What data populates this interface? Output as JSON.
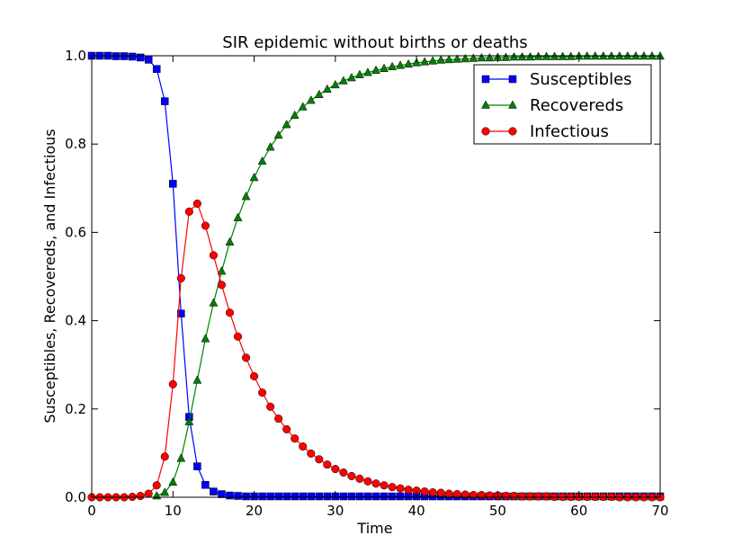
{
  "chart_data": {
    "type": "line",
    "title": "SIR epidemic without births or deaths",
    "xlabel": "Time",
    "ylabel": "Susceptibles, Recovereds, and Infectious",
    "xlim": [
      0,
      70
    ],
    "ylim": [
      0,
      1.0
    ],
    "xticks": [
      "0",
      "10",
      "20",
      "30",
      "40",
      "50",
      "60",
      "70"
    ],
    "yticks": [
      "0.0",
      "0.2",
      "0.4",
      "0.6",
      "0.8",
      "1.0"
    ],
    "grid": false,
    "legend_position": "upper-right",
    "series": [
      {
        "name": "Susceptibles",
        "color": "#0000ff",
        "marker": "square",
        "x": [
          0,
          1,
          2,
          3,
          4,
          5,
          6,
          7,
          8,
          9,
          10,
          11,
          12,
          13,
          14,
          15,
          16,
          17,
          18,
          19,
          20,
          21,
          22,
          23,
          24,
          25,
          26,
          27,
          28,
          29,
          30,
          31,
          32,
          33,
          34,
          35,
          36,
          37,
          38,
          39,
          40,
          41,
          42,
          43,
          44,
          45,
          46,
          47,
          48,
          49,
          50,
          51,
          52,
          53,
          54,
          55,
          56,
          57,
          58,
          59,
          60,
          61,
          62,
          63,
          64,
          65,
          66,
          67,
          68,
          69,
          70
        ],
        "values": [
          1.0,
          1.0,
          1.0,
          0.999,
          0.999,
          0.998,
          0.996,
          0.991,
          0.97,
          0.897,
          0.71,
          0.416,
          0.182,
          0.07,
          0.028,
          0.013,
          0.007,
          0.004,
          0.003,
          0.002,
          0.002,
          0.002,
          0.002,
          0.002,
          0.002,
          0.002,
          0.002,
          0.002,
          0.002,
          0.002,
          0.002,
          0.002,
          0.002,
          0.002,
          0.002,
          0.002,
          0.002,
          0.002,
          0.002,
          0.002,
          0.002,
          0.002,
          0.002,
          0.002,
          0.002,
          0.002,
          0.002,
          0.002,
          0.002,
          0.002,
          0.002,
          0.002,
          0.002,
          0.002,
          0.002,
          0.002,
          0.002,
          0.002,
          0.002,
          0.002,
          0.002,
          0.002,
          0.002,
          0.002,
          0.002,
          0.002,
          0.002,
          0.002,
          0.002,
          0.002,
          0.002
        ]
      },
      {
        "name": "Recovereds",
        "color": "#008000",
        "marker": "triangle",
        "x": [
          8,
          9,
          10,
          11,
          12,
          13,
          14,
          15,
          16,
          17,
          18,
          19,
          20,
          21,
          22,
          23,
          24,
          25,
          26,
          27,
          28,
          29,
          30,
          31,
          32,
          33,
          34,
          35,
          36,
          37,
          38,
          39,
          40,
          41,
          42,
          43,
          44,
          45,
          46,
          47,
          48,
          49,
          50,
          51,
          52,
          53,
          54,
          55,
          56,
          57,
          58,
          59,
          60,
          61,
          62,
          63,
          64,
          65,
          66,
          67,
          68,
          69,
          70
        ],
        "values": [
          0.003,
          0.011,
          0.034,
          0.088,
          0.171,
          0.265,
          0.359,
          0.44,
          0.512,
          0.578,
          0.633,
          0.681,
          0.724,
          0.761,
          0.793,
          0.82,
          0.844,
          0.865,
          0.884,
          0.899,
          0.912,
          0.924,
          0.934,
          0.943,
          0.95,
          0.957,
          0.962,
          0.967,
          0.971,
          0.975,
          0.978,
          0.981,
          0.984,
          0.986,
          0.988,
          0.99,
          0.991,
          0.992,
          0.993,
          0.994,
          0.995,
          0.995,
          0.996,
          0.996,
          0.997,
          0.997,
          0.997,
          0.998,
          0.998,
          0.998,
          0.998,
          0.998,
          0.999,
          0.999,
          0.999,
          0.999,
          0.999,
          0.999,
          0.999,
          0.999,
          0.999,
          0.999,
          0.999
        ]
      },
      {
        "name": "Infectious",
        "color": "#ff0000",
        "marker": "circle",
        "x": [
          0,
          1,
          2,
          3,
          4,
          5,
          6,
          7,
          8,
          9,
          10,
          11,
          12,
          13,
          14,
          15,
          16,
          17,
          18,
          19,
          20,
          21,
          22,
          23,
          24,
          25,
          26,
          27,
          28,
          29,
          30,
          31,
          32,
          33,
          34,
          35,
          36,
          37,
          38,
          39,
          40,
          41,
          42,
          43,
          44,
          45,
          46,
          47,
          48,
          49,
          50,
          51,
          52,
          53,
          54,
          55,
          56,
          57,
          58,
          59,
          60,
          61,
          62,
          63,
          64,
          65,
          66,
          67,
          68,
          69,
          70
        ],
        "values": [
          0.0,
          0.0,
          0.0,
          0.0,
          0.0,
          0.001,
          0.003,
          0.008,
          0.027,
          0.092,
          0.256,
          0.496,
          0.647,
          0.665,
          0.615,
          0.548,
          0.481,
          0.418,
          0.364,
          0.316,
          0.274,
          0.237,
          0.205,
          0.178,
          0.154,
          0.133,
          0.115,
          0.099,
          0.086,
          0.074,
          0.064,
          0.056,
          0.048,
          0.042,
          0.036,
          0.031,
          0.027,
          0.023,
          0.02,
          0.017,
          0.015,
          0.013,
          0.011,
          0.01,
          0.008,
          0.007,
          0.006,
          0.005,
          0.005,
          0.004,
          0.004,
          0.003,
          0.003,
          0.002,
          0.002,
          0.002,
          0.002,
          0.001,
          0.001,
          0.001,
          0.001,
          0.001,
          0.001,
          0.001,
          0.001,
          0.0,
          0.0,
          0.0,
          0.0,
          0.0,
          0.0
        ]
      }
    ]
  }
}
